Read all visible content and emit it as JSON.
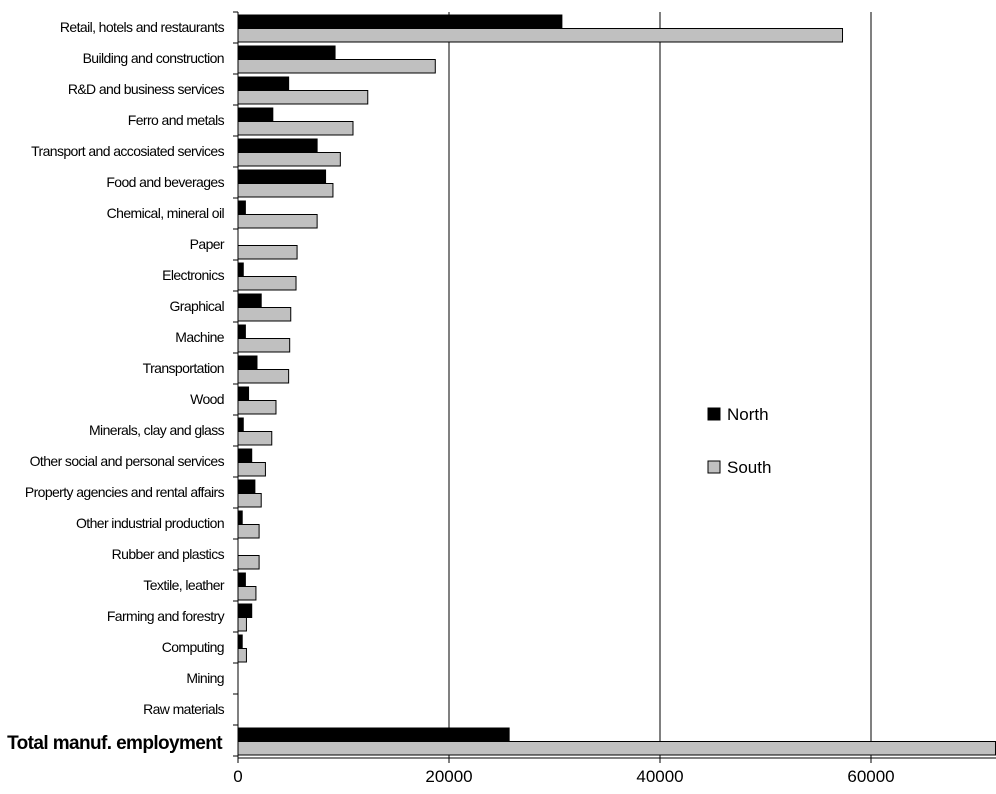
{
  "chart_data": {
    "type": "bar",
    "orientation": "horizontal",
    "categories": [
      "Retail, hotels and restaurants",
      "Building and construction",
      "R&D and business services",
      "Ferro and metals",
      "Transport and accosiated services",
      "Food and beverages",
      "Chemical, mineral oil",
      "Paper",
      "Electronics",
      "Graphical",
      "Machine",
      "Transportation",
      "Wood",
      "Minerals, clay and glass",
      "Other social and personal services",
      "Property agencies and rental affairs",
      "Other industrial production",
      "Rubber and plastics",
      "Textile, leather",
      "Farming and forestry",
      "Computing",
      "Mining",
      "Raw materials",
      "Total manuf. employment"
    ],
    "series": [
      {
        "name": "North",
        "color": "#000000",
        "values": [
          30700,
          9200,
          4800,
          3300,
          7500,
          8300,
          700,
          0,
          500,
          2200,
          700,
          1800,
          1000,
          500,
          1300,
          1600,
          400,
          0,
          700,
          1300,
          400,
          0,
          0,
          25700
        ]
      },
      {
        "name": "South",
        "color": "#c0c0c0",
        "values": [
          57300,
          18700,
          12300,
          10900,
          9700,
          9000,
          7500,
          5600,
          5500,
          5000,
          4900,
          4800,
          3600,
          3200,
          2600,
          2200,
          2000,
          2000,
          1700,
          800,
          800,
          0,
          0,
          71800
        ]
      }
    ],
    "xlim": [
      0,
      71800
    ],
    "xticks": [
      "0",
      "20000",
      "40000",
      "60000"
    ],
    "xtick_values": [
      0,
      20000,
      40000,
      60000
    ],
    "grid": true,
    "legend": {
      "position": "center-right",
      "entries": [
        "North",
        "South"
      ]
    }
  }
}
